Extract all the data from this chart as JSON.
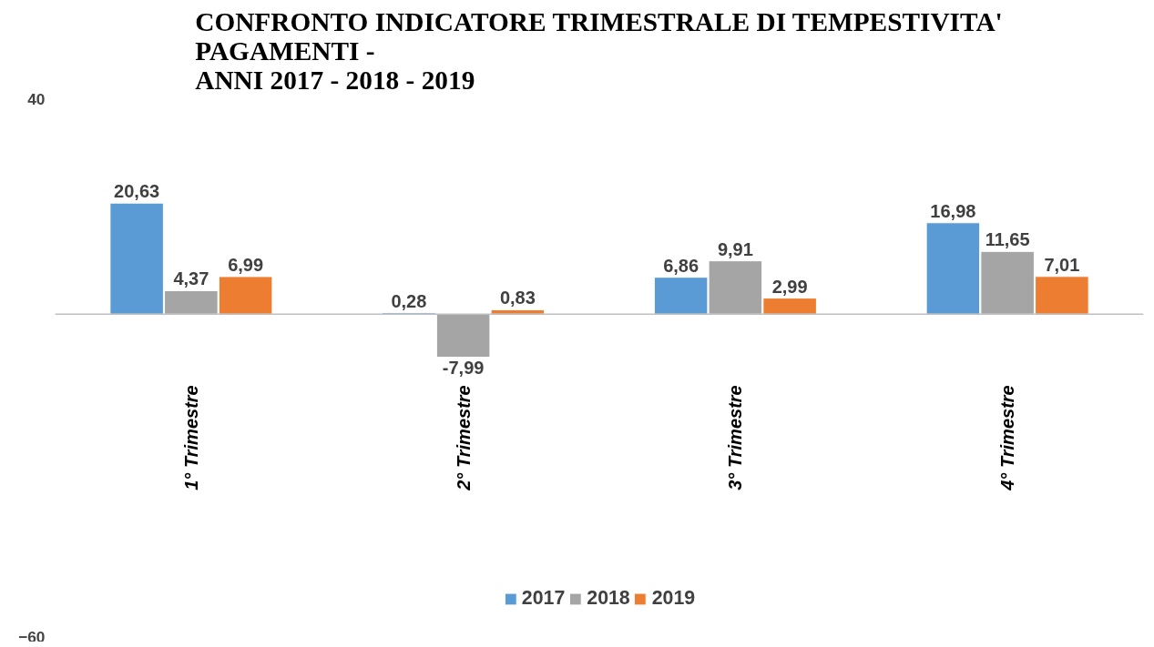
{
  "chart_data": {
    "type": "bar",
    "title": "CONFRONTO INDICATORE TRIMESTRALE DI TEMPESTIVITA'\nPAGAMENTI -\nANNI 2017 - 2018 - 2019",
    "categories": [
      "1° Trimestre",
      "2° Trimestre",
      "3° Trimestre",
      "4° Trimestre"
    ],
    "series": [
      {
        "name": "2017",
        "color": "#5b9bd5",
        "values": [
          20.63,
          0.28,
          6.86,
          16.98
        ],
        "value_labels": [
          "20,63",
          "0,28",
          "6,86",
          "16,98"
        ]
      },
      {
        "name": "2018",
        "color": "#a5a5a5",
        "values": [
          4.37,
          -7.99,
          9.91,
          11.65
        ],
        "value_labels": [
          "4,37",
          "-7,99",
          "9,91",
          "11,65"
        ]
      },
      {
        "name": "2019",
        "color": "#ed7d31",
        "values": [
          6.99,
          0.83,
          2.99,
          7.01
        ],
        "value_labels": [
          "6,99",
          "0,83",
          "2,99",
          "7,01"
        ]
      }
    ],
    "ylim": [
      -60,
      40
    ],
    "yticks": [
      -60,
      40
    ],
    "grid": false,
    "legend": "bottom"
  }
}
